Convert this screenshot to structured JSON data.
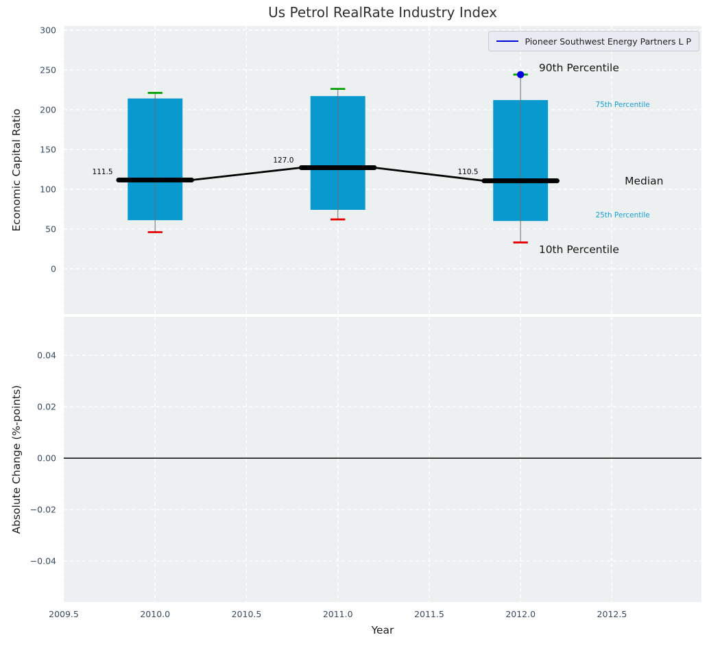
{
  "colors": {
    "axes_background": "#edf0f1",
    "grid": "#ffffff",
    "box_fill": "#0899ce",
    "median_line": "#000000",
    "p90_cap": "#00a000",
    "p10_cap": "#e60000",
    "whisker": "#6e6e6e",
    "company_point": "#0000dd",
    "legend_line": "#0000dd",
    "cyan_label": "#189ed3",
    "tick_label": "#36495e",
    "zero_line": "#000000"
  },
  "chart_data": [
    {
      "type": "boxplot",
      "title": "Us Petrol RealRate Industry Index",
      "ylabel": "Economic Capital Ratio",
      "xlim": [
        2009.5,
        2012.99
      ],
      "ylim": [
        -57,
        305
      ],
      "yticks": [
        300,
        250,
        200,
        150,
        100,
        50,
        0
      ],
      "ytick_labels": [
        "300",
        "250",
        "200",
        "150",
        "100",
        "50",
        "0"
      ],
      "xticks": [
        2009.5,
        2010,
        2010.5,
        2011,
        2011.5,
        2012,
        2012.5
      ],
      "grid": "white dashed on light gray",
      "legend": {
        "label": "Pioneer Southwest Energy Partners L P",
        "position": "upper right"
      },
      "box_width": 0.3,
      "median_segment_halfwidth": 0.2,
      "cap_halfwidth": 0.04,
      "boxes": [
        {
          "year": 2010,
          "p10": 46,
          "p25": 61,
          "median": 111.5,
          "p75": 214,
          "p90": 221
        },
        {
          "year": 2011,
          "p10": 62,
          "p25": 74,
          "median": 127.0,
          "p75": 217,
          "p90": 226
        },
        {
          "year": 2012,
          "p10": 33,
          "p25": 60,
          "median": 110.5,
          "p75": 212,
          "p90": 244
        }
      ],
      "company_point": {
        "year": 2012,
        "value": 244
      },
      "median_value_labels": [
        {
          "text": "111.5",
          "x": 2009.78,
          "y": 121
        },
        {
          "text": "127.0",
          "x": 2010.77,
          "y": 136
        },
        {
          "text": "110.5",
          "x": 2011.78,
          "y": 121
        }
      ],
      "annotations": [
        {
          "text": "90th Percentile",
          "x": 2012.1,
          "y": 252,
          "style": "big"
        },
        {
          "text": "75th Percentile",
          "x": 2012.41,
          "y": 206,
          "style": "small"
        },
        {
          "text": "Median",
          "x": 2012.57,
          "y": 110,
          "style": "big"
        },
        {
          "text": "25th Percentile",
          "x": 2012.41,
          "y": 67,
          "style": "small"
        },
        {
          "text": "10th Percentile",
          "x": 2012.1,
          "y": 24,
          "style": "big"
        }
      ]
    },
    {
      "type": "line",
      "ylabel": "Absolute Change (%-points)",
      "xlabel": "Year",
      "xlim": [
        2009.5,
        2012.99
      ],
      "ylim": [
        -0.056,
        0.055
      ],
      "yticks": [
        0.04,
        0.02,
        0,
        -0.02,
        -0.04
      ],
      "ytick_labels": [
        "0.04",
        "0.02",
        "0.00",
        "−0.02",
        "−0.04"
      ],
      "xtick_labels": [
        "2009.5",
        "2010.0",
        "2010.5",
        "2011.0",
        "2011.5",
        "2012.0",
        "2012.5"
      ],
      "zero_line": 0,
      "series": []
    }
  ]
}
